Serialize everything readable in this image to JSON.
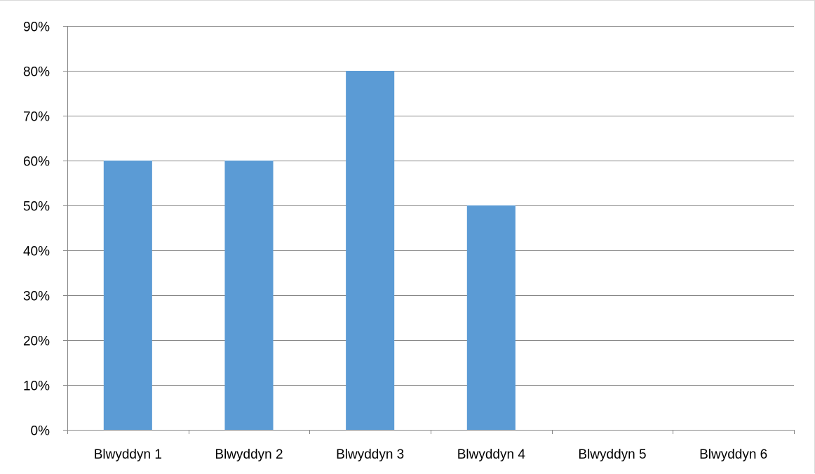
{
  "chart_data": {
    "type": "bar",
    "categories": [
      "Blwyddyn 1",
      "Blwyddyn 2",
      "Blwyddyn 3",
      "Blwyddyn 4",
      "Blwyddyn 5",
      "Blwyddyn 6"
    ],
    "values": [
      0.6,
      0.6,
      0.8,
      0.5,
      0,
      0
    ],
    "title": "",
    "xlabel": "",
    "ylabel": "",
    "ylim": [
      0,
      0.9
    ],
    "ytick_labels": [
      "0%",
      "10%",
      "20%",
      "30%",
      "40%",
      "50%",
      "60%",
      "70%",
      "80%",
      "90%"
    ],
    "grid": true,
    "legend": "none",
    "bar_color": "#5b9bd5",
    "grid_color": "#868686"
  }
}
